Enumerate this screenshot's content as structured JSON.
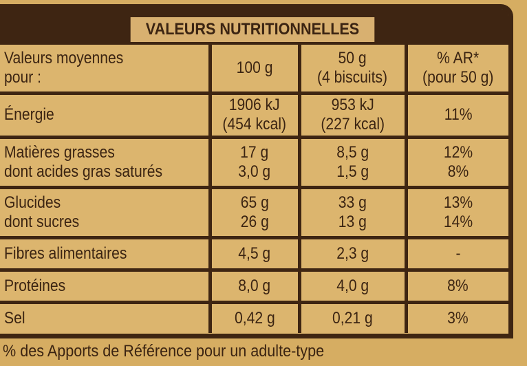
{
  "title": "VALEURS NUTRITIONNELLES",
  "header": {
    "col0": [
      "Valeurs moyennes",
      "pour :"
    ],
    "col1": [
      "100 g"
    ],
    "col2": [
      "50 g",
      "(4 biscuits)"
    ],
    "col3": [
      "% AR*",
      "(pour 50 g)"
    ]
  },
  "rows": [
    {
      "labels": [
        "Énergie"
      ],
      "per100": [
        "1906 kJ",
        "(454 kcal)"
      ],
      "per50": [
        "953 kJ",
        "(227 kcal)"
      ],
      "ar": [
        "11%"
      ]
    },
    {
      "labels": [
        "Matières grasses",
        "dont acides gras saturés"
      ],
      "per100": [
        "17 g",
        "3,0 g"
      ],
      "per50": [
        "8,5 g",
        "1,5 g"
      ],
      "ar": [
        "12%",
        "8%"
      ]
    },
    {
      "labels": [
        "Glucides",
        "dont sucres"
      ],
      "per100": [
        "65 g",
        "26 g"
      ],
      "per50": [
        "33 g",
        "13 g"
      ],
      "ar": [
        "13%",
        "14%"
      ]
    },
    {
      "labels": [
        "Fibres alimentaires"
      ],
      "per100": [
        "4,5 g"
      ],
      "per50": [
        "2,3 g"
      ],
      "ar": [
        "-"
      ]
    },
    {
      "labels": [
        "Protéines"
      ],
      "per100": [
        "8,0 g"
      ],
      "per50": [
        "4,0 g"
      ],
      "ar": [
        "8%"
      ]
    },
    {
      "labels": [
        "Sel"
      ],
      "per100": [
        "0,42 g"
      ],
      "per50": [
        "0,21 g"
      ],
      "ar": [
        "3%"
      ]
    }
  ],
  "footer": "% des Apports de Référence pour un adulte-type"
}
